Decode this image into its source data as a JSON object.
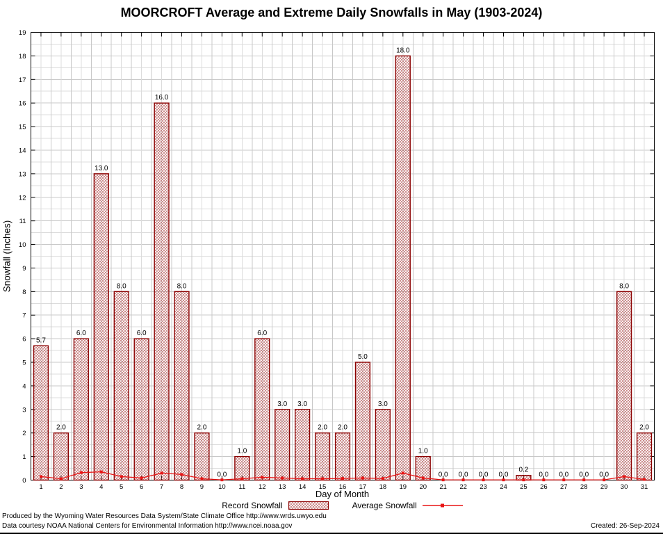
{
  "title": "MOORCROFT Average and Extreme Daily Snowfalls in May (1903-2024)",
  "footer": {
    "line1": "Produced by the Wyoming Water Resources Data System/State Climate Office http://www.wrds.uwyo.edu",
    "line2": "Data courtesy NOAA National Centers for Environmental Information http://www.ncei.noaa.gov",
    "created": "Created: 26-Sep-2024"
  },
  "chart_data": {
    "type": "bar",
    "title": "MOORCROFT Average and Extreme Daily Snowfalls in May (1903-2024)",
    "xlabel": "Day of Month",
    "ylabel": "Snowfall (Inches)",
    "ylim": [
      0,
      19
    ],
    "y_tick_step": 1,
    "grid": true,
    "legend_position": "bottom",
    "categories": [
      1,
      2,
      3,
      4,
      5,
      6,
      7,
      8,
      9,
      10,
      11,
      12,
      13,
      14,
      15,
      16,
      17,
      18,
      19,
      20,
      21,
      22,
      23,
      24,
      25,
      26,
      27,
      28,
      29,
      30,
      31
    ],
    "series": [
      {
        "name": "Record Snowfall",
        "type": "bar",
        "values": [
          5.7,
          2.0,
          6.0,
          13.0,
          8.0,
          6.0,
          16.0,
          8.0,
          2.0,
          0.0,
          1.0,
          6.0,
          3.0,
          3.0,
          2.0,
          2.0,
          5.0,
          3.0,
          18.0,
          1.0,
          0.0,
          0.0,
          0.0,
          0.0,
          0.2,
          0.0,
          0.0,
          0.0,
          0.0,
          8.0,
          2.0
        ]
      },
      {
        "name": "Average Snowfall",
        "type": "line",
        "values": [
          0.15,
          0.06,
          0.32,
          0.35,
          0.15,
          0.09,
          0.3,
          0.24,
          0.06,
          0.01,
          0.06,
          0.12,
          0.09,
          0.06,
          0.06,
          0.07,
          0.09,
          0.07,
          0.3,
          0.09,
          0.01,
          0.01,
          0.01,
          0.01,
          0.01,
          0.01,
          0.01,
          0.01,
          0.01,
          0.15,
          0.03
        ]
      }
    ],
    "colors": {
      "bar_edge": "#8b0000",
      "hatch": "#b04c4c",
      "avg_line": "#e81515",
      "grid_minor": "#dcdcdc",
      "grid_major": "#c8c8c8"
    }
  }
}
